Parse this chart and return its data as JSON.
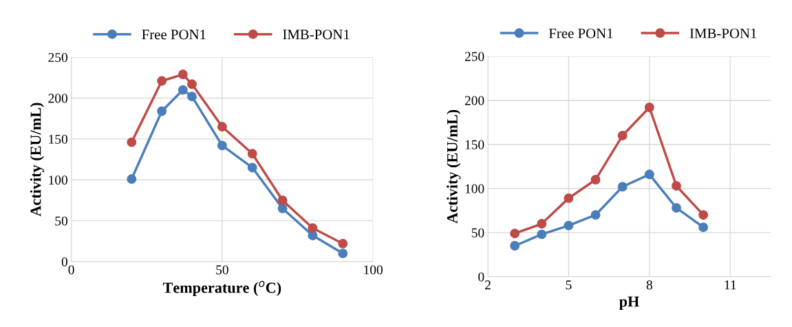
{
  "chart_data": [
    {
      "type": "line",
      "xlabel": "Temperature ($^{o}$C)",
      "ylabel": "Activity (EU/mL)",
      "x": [
        20,
        30,
        37,
        40,
        50,
        60,
        70,
        80,
        90
      ],
      "series": [
        {
          "name": "Free PON1",
          "color": "#4a7ebb",
          "values": [
            101,
            184,
            210,
            202,
            142,
            115,
            65,
            32,
            10
          ]
        },
        {
          "name": "IMB-PON1",
          "color": "#be4b48",
          "values": [
            146,
            221,
            229,
            217,
            165,
            132,
            75,
            41,
            22
          ]
        }
      ],
      "xlim": [
        0,
        100
      ],
      "xticks": [
        0,
        50,
        100
      ],
      "ylim": [
        0,
        250
      ],
      "yticks": [
        0,
        50,
        100,
        150,
        200,
        250
      ],
      "grid": true,
      "legend": "top",
      "marker": "circle",
      "line_style": "solid"
    },
    {
      "type": "line",
      "xlabel": "pH",
      "ylabel": "Activity (EU/mL)",
      "x": [
        3,
        4,
        5,
        6,
        7,
        8,
        9,
        10
      ],
      "series": [
        {
          "name": "Free PON1",
          "color": "#4a7ebb",
          "values": [
            35,
            48,
            58,
            70,
            102,
            116,
            78,
            56
          ]
        },
        {
          "name": "IMB-PON1",
          "color": "#be4b48",
          "values": [
            49,
            60,
            89,
            110,
            160,
            192,
            103,
            70
          ]
        }
      ],
      "xlim": [
        2,
        12.5
      ],
      "xticks": [
        2,
        5,
        8,
        11
      ],
      "ylim": [
        0,
        250
      ],
      "yticks": [
        0,
        50,
        100,
        150,
        200,
        250
      ],
      "grid": true,
      "legend": "top",
      "marker": "circle",
      "line_style": "solid"
    }
  ]
}
